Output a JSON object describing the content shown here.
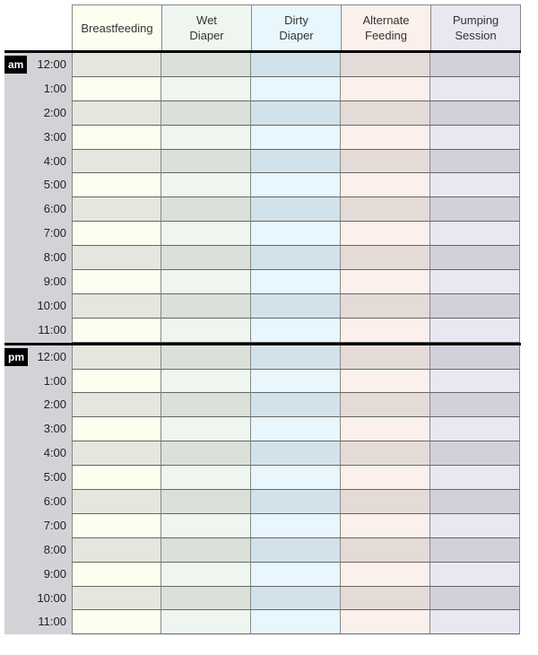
{
  "columns": [
    {
      "label": "Breastfeeding",
      "light": "#fefef0",
      "dark": "#e6e6de"
    },
    {
      "label": "Wet\nDiaper",
      "light": "#eff5ef",
      "dark": "#d9e1d9"
    },
    {
      "label": "Dirty\nDiaper",
      "light": "#e8f6fd",
      "dark": "#d2e2ea"
    },
    {
      "label": "Alternate\nFeeding",
      "light": "#fcf0ec",
      "dark": "#e5dbd6"
    },
    {
      "label": "Pumping\nSession",
      "light": "#e8e8f3",
      "dark": "#d1d1dc"
    }
  ],
  "blocks": [
    {
      "period": "am",
      "times": [
        "12:00",
        "1:00",
        "2:00",
        "3:00",
        "4:00",
        "5:00",
        "6:00",
        "7:00",
        "8:00",
        "9:00",
        "10:00",
        "11:00"
      ]
    },
    {
      "period": "pm",
      "times": [
        "12:00",
        "1:00",
        "2:00",
        "3:00",
        "4:00",
        "5:00",
        "6:00",
        "7:00",
        "8:00",
        "9:00",
        "10:00",
        "11:00"
      ]
    }
  ]
}
